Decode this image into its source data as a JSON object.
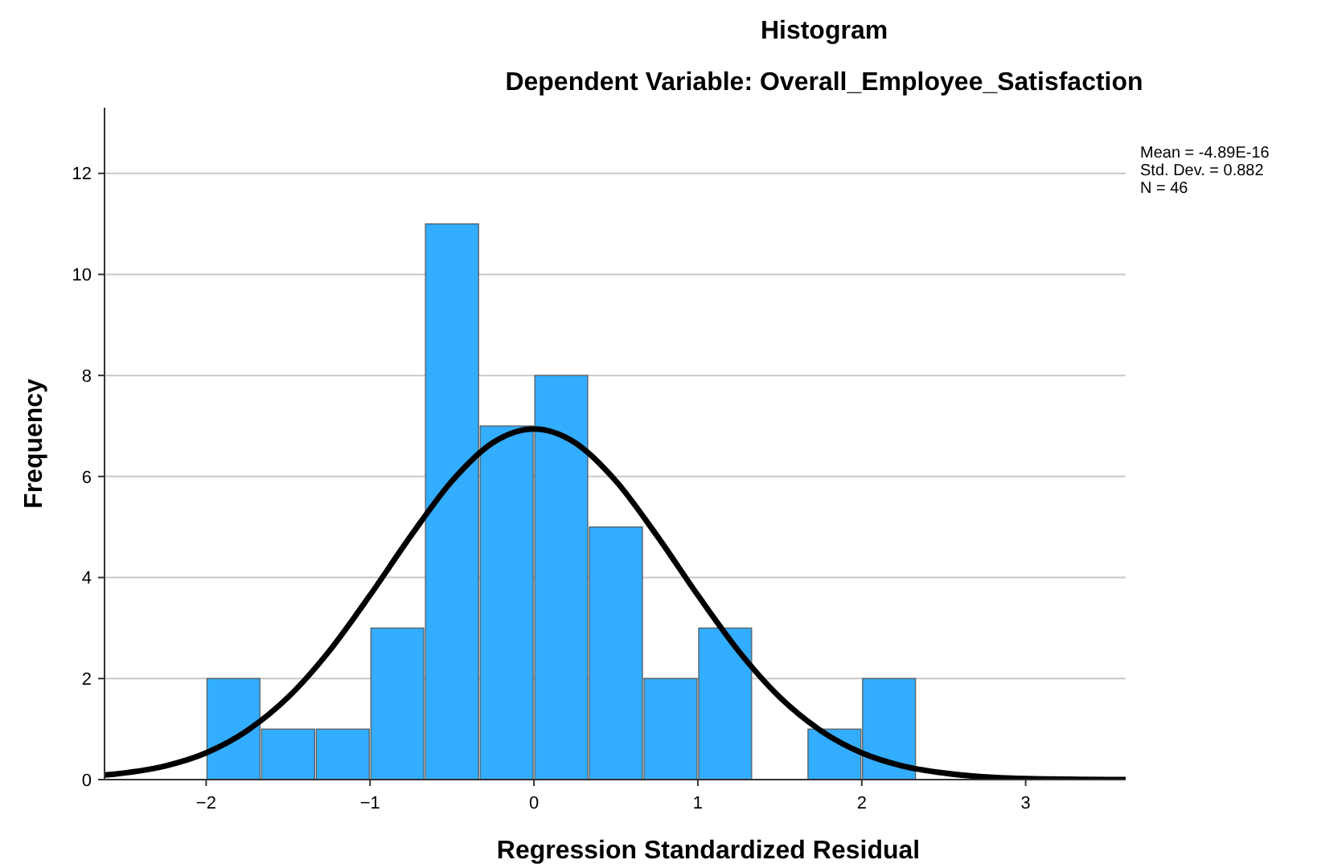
{
  "chart_data": {
    "type": "histogram",
    "title": "Histogram",
    "subtitle": "Dependent Variable: Overall_Employee_Satisfaction",
    "xlabel": "Regression Standardized Residual",
    "ylabel": "Frequency",
    "annotations": [
      "Mean = -4.89E-16",
      "Std. Dev. = 0.882",
      "N = 46"
    ],
    "bins": [
      -2,
      -1.667,
      -1.333,
      -1,
      -0.667,
      -0.333,
      0,
      0.333,
      0.667,
      1,
      1.333,
      1.667,
      2,
      2.333
    ],
    "values": [
      2,
      1,
      1,
      3,
      11,
      7,
      8,
      5,
      2,
      3,
      0,
      1,
      2
    ],
    "color": "#33adff",
    "series": [
      {
        "type": "line",
        "color": "#000000",
        "x": [
          -2.62,
          -2.25,
          -2,
          -1.75,
          -1.5,
          -1.25,
          -1,
          -0.75,
          -0.5,
          -0.25,
          0,
          0.25,
          0.5,
          0.75,
          1,
          1.25,
          1.5,
          1.75,
          2,
          2.25,
          2.5,
          3,
          3.61
        ],
        "values": [
          0.09,
          0.27,
          0.53,
          0.97,
          1.63,
          2.54,
          3.65,
          4.83,
          5.91,
          6.67,
          6.94,
          6.67,
          5.91,
          4.83,
          3.65,
          2.54,
          1.63,
          0.97,
          0.53,
          0.27,
          0.13,
          0.02,
          0
        ]
      }
    ],
    "xlim": [
      -2.62,
      3.61
    ],
    "ylim": [
      0,
      13.3
    ],
    "xticks": [
      -2,
      -1,
      0,
      1,
      2,
      3
    ],
    "yticks": [
      0,
      2,
      4,
      6,
      8,
      10,
      12
    ],
    "grid": "y"
  }
}
